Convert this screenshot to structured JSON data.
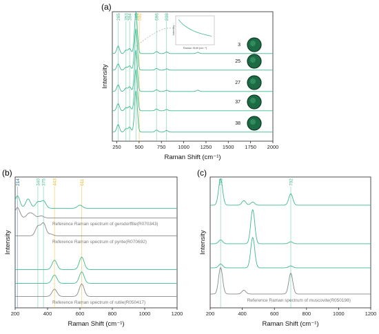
{
  "figure": {
    "panel_labels": [
      "(a)",
      "(b)",
      "(c)"
    ]
  },
  "chart_data": [
    {
      "panel": "(a)",
      "type": "line",
      "xlabel": "Raman Shift (cm⁻¹)",
      "ylabel": "Intensity",
      "xlim": [
        200,
        2000
      ],
      "xticks": [
        250,
        500,
        750,
        1000,
        1250,
        1500,
        1750,
        2000
      ],
      "line_color": "#3cb98a",
      "marker_lines": [
        {
          "x": 265,
          "label": "265",
          "color": "#3cb98a"
        },
        {
          "x": 353,
          "label": "353",
          "color": "#3cb98a"
        },
        {
          "x": 394,
          "label": "394",
          "color": "#3cb98a"
        },
        {
          "x": 465,
          "label": "465",
          "color": "#3cb98a"
        },
        {
          "x": 502,
          "label": "502",
          "color": "#e7b416"
        },
        {
          "x": 696,
          "label": "696",
          "color": "#3cb98a"
        },
        {
          "x": 808,
          "label": "808",
          "color": "#3cb98a"
        }
      ],
      "series": [
        {
          "name": "3",
          "peaks": [
            [
              265,
              0.18
            ],
            [
              353,
              0.08
            ],
            [
              394,
              0.12
            ],
            [
              465,
              1.0
            ],
            [
              696,
              0.05
            ],
            [
              808,
              0.04
            ],
            [
              1160,
              0.03
            ]
          ]
        },
        {
          "name": "25",
          "peaks": [
            [
              265,
              0.15
            ],
            [
              353,
              0.07
            ],
            [
              394,
              0.1
            ],
            [
              465,
              1.0
            ],
            [
              696,
              0.04
            ],
            [
              808,
              0.03
            ]
          ]
        },
        {
          "name": "27",
          "peaks": [
            [
              265,
              0.16
            ],
            [
              353,
              0.08
            ],
            [
              394,
              0.11
            ],
            [
              465,
              1.0
            ],
            [
              696,
              0.04
            ],
            [
              808,
              0.03
            ],
            [
              1160,
              0.03
            ]
          ]
        },
        {
          "name": "37",
          "peaks": [
            [
              265,
              0.17
            ],
            [
              353,
              0.07
            ],
            [
              394,
              0.1
            ],
            [
              465,
              1.0
            ],
            [
              696,
              0.04
            ],
            [
              808,
              0.03
            ]
          ]
        },
        {
          "name": "38",
          "peaks": [
            [
              265,
              0.18
            ],
            [
              353,
              0.08
            ],
            [
              394,
              0.12
            ],
            [
              465,
              1.0
            ],
            [
              696,
              0.05
            ],
            [
              808,
              0.04
            ]
          ]
        }
      ],
      "inset": {
        "ylabel": "Intensity",
        "xlabel": "Raman Shift (cm⁻¹)",
        "x": [
          300,
          400,
          500,
          600,
          700,
          800,
          900,
          1000
        ],
        "y": [
          0.95,
          0.7,
          0.55,
          0.42,
          0.33,
          0.26,
          0.2,
          0.15
        ]
      }
    },
    {
      "panel": "(b)",
      "type": "line",
      "xlabel": "Raman Shift (cm⁻¹)",
      "ylabel": "Intensity",
      "xlim": [
        200,
        1200
      ],
      "xticks": [
        200,
        400,
        600,
        800,
        1000,
        1200
      ],
      "marker_lines": [
        {
          "x": 214,
          "label": "214",
          "color": "#1a6f8a"
        },
        {
          "x": 340,
          "label": "340",
          "color": "#3cb98a"
        },
        {
          "x": 375,
          "label": "375",
          "color": "#3cb98a"
        },
        {
          "x": 443,
          "label": "443",
          "color": "#e7b416"
        },
        {
          "x": 611,
          "label": "611",
          "color": "#e7b416"
        }
      ],
      "series": [
        {
          "name": "",
          "color": "#3cb98a",
          "peaks": [
            [
              214,
              0.6
            ],
            [
              280,
              0.45
            ],
            [
              340,
              0.3
            ],
            [
              375,
              0.35
            ],
            [
              600,
              0.15
            ]
          ]
        },
        {
          "name": "Reference Raman spectrum of gersdorffite(R070343)",
          "color": "#888888",
          "peaks": [
            [
              214,
              0.5
            ],
            [
              285,
              0.2
            ],
            [
              310,
              0.15
            ],
            [
              360,
              0.1
            ]
          ]
        },
        {
          "name": "Reference Raman spectrum of pyrite(R070692)",
          "color": "#888888",
          "peaks": [
            [
              340,
              0.45
            ],
            [
              375,
              0.6
            ],
            [
              420,
              0.08
            ]
          ]
        },
        {
          "name": "",
          "color": "#3cb98a",
          "peaks": [
            [
              443,
              0.45
            ],
            [
              611,
              0.6
            ]
          ]
        },
        {
          "name": "",
          "color": "#3cb98a",
          "peaks": [
            [
              443,
              0.4
            ],
            [
              611,
              0.55
            ]
          ]
        },
        {
          "name": "Reference Raman spectrum of rutile(R050417)",
          "color": "#888888",
          "peaks": [
            [
              443,
              0.35
            ],
            [
              611,
              0.6
            ]
          ]
        }
      ]
    },
    {
      "panel": "(c)",
      "type": "line",
      "xlabel": "Raman Shift (cm⁻¹)",
      "ylabel": "Intensity",
      "xlim": [
        200,
        1200
      ],
      "xticks": [
        200,
        400,
        600,
        800,
        1000,
        1200
      ],
      "marker_lines": [
        {
          "x": 265,
          "label": "265",
          "color": "#3cb98a"
        },
        {
          "x": 702,
          "label": "702",
          "color": "#3cb98a"
        }
      ],
      "series": [
        {
          "name": "",
          "color": "#3cb98a",
          "peaks": [
            [
              265,
              0.7
            ],
            [
              410,
              0.12
            ],
            [
              465,
              0.08
            ],
            [
              702,
              0.3
            ]
          ]
        },
        {
          "name": "",
          "color": "#3cb98a",
          "peaks": [
            [
              265,
              0.1
            ],
            [
              465,
              0.9
            ],
            [
              702,
              0.05
            ]
          ]
        },
        {
          "name": "",
          "color": "#3cb98a",
          "peaks": [
            [
              265,
              0.1
            ],
            [
              465,
              0.8
            ],
            [
              702,
              0.05
            ]
          ]
        },
        {
          "name": "Reference Raman spectrum of muscovite(R050198)",
          "color": "#888888",
          "peaks": [
            [
              265,
              0.7
            ],
            [
              410,
              0.1
            ],
            [
              702,
              0.55
            ]
          ]
        }
      ]
    }
  ]
}
